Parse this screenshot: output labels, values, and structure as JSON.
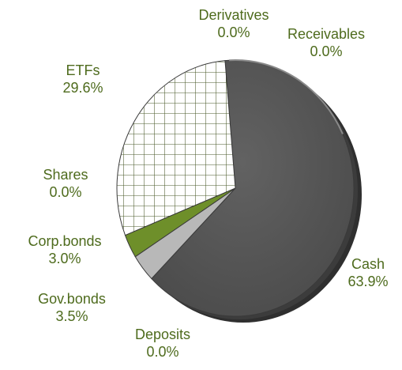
{
  "chart_data": {
    "type": "pie",
    "title": "",
    "colors": {
      "label_text": "#4e6b1d"
    },
    "series": [
      {
        "name": "Cash",
        "value_label": "63.9%",
        "value": 63.9,
        "color": "#5a5a5a",
        "pattern": "solid"
      },
      {
        "name": "Deposits",
        "value_label": "0.0%",
        "value": 0.0,
        "color": "#e9ecd6",
        "pattern": "solid"
      },
      {
        "name": "Gov.bonds",
        "value_label": "3.5%",
        "value": 3.5,
        "color": "#b8b8b8",
        "pattern": "solid"
      },
      {
        "name": "Corp.bonds",
        "value_label": "3.0%",
        "value": 3.0,
        "color": "#6e8f2a",
        "pattern": "solid"
      },
      {
        "name": "Shares",
        "value_label": "0.0%",
        "value": 0.0,
        "color": "#cfd8b0",
        "pattern": "solid"
      },
      {
        "name": "ETFs",
        "value_label": "29.6%",
        "value": 29.6,
        "color": "#ffffff",
        "pattern": "grid"
      },
      {
        "name": "Derivatives",
        "value_label": "0.0%",
        "value": 0.0,
        "color": "#dfe4c8",
        "pattern": "solid"
      },
      {
        "name": "Receivables",
        "value_label": "0.0%",
        "value": 0.0,
        "color": "#d3d3d3",
        "pattern": "solid"
      }
    ]
  }
}
